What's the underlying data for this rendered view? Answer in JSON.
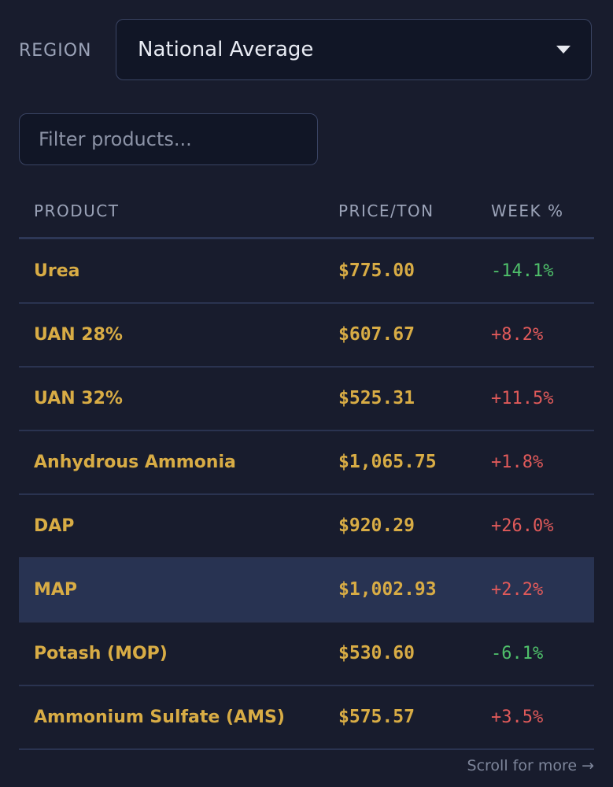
{
  "region": {
    "label": "REGION",
    "selected": "National Average"
  },
  "filter": {
    "placeholder": "Filter products..."
  },
  "table": {
    "headers": {
      "product": "PRODUCT",
      "price": "PRICE/TON",
      "week": "WEEK %"
    },
    "rows": [
      {
        "product": "Urea",
        "price": "$775.00",
        "week": "-14.1%",
        "direction": "down"
      },
      {
        "product": "UAN 28%",
        "price": "$607.67",
        "week": "+8.2%",
        "direction": "up"
      },
      {
        "product": "UAN 32%",
        "price": "$525.31",
        "week": "+11.5%",
        "direction": "up"
      },
      {
        "product": "Anhydrous Ammonia",
        "price": "$1,065.75",
        "week": "+1.8%",
        "direction": "up"
      },
      {
        "product": "DAP",
        "price": "$920.29",
        "week": "+26.0%",
        "direction": "up"
      },
      {
        "product": "MAP",
        "price": "$1,002.93",
        "week": "+2.2%",
        "direction": "up",
        "selected": true
      },
      {
        "product": "Potash (MOP)",
        "price": "$530.60",
        "week": "-6.1%",
        "direction": "down"
      },
      {
        "product": "Ammonium Sulfate (AMS)",
        "price": "$575.57",
        "week": "+3.5%",
        "direction": "up"
      }
    ]
  },
  "footer": {
    "scroll_hint": "Scroll for more →"
  },
  "colors": {
    "background": "#181c2d",
    "accent": "#d8ac45",
    "positive_change": "#e05a5a",
    "negative_change": "#4fc06a",
    "selected_row": "#283352"
  }
}
